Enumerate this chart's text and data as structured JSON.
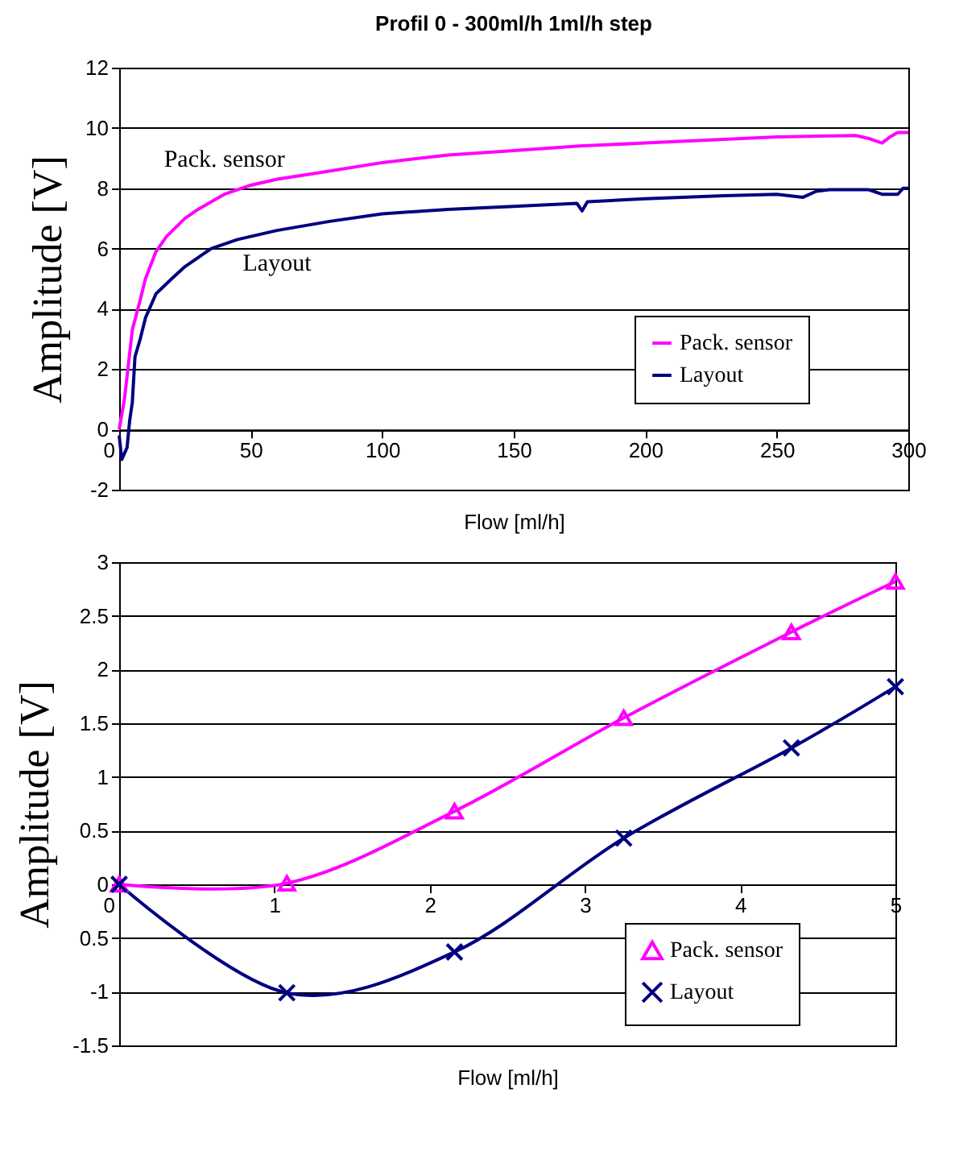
{
  "chart_data": [
    {
      "type": "line",
      "title": "Profil 0 - 300ml/h 1ml/h step",
      "xlabel": "Flow [ml/h]",
      "ylabel": "Amplitude [V]",
      "xlim": [
        0,
        300
      ],
      "xticks": [
        0,
        50,
        100,
        150,
        200,
        250,
        300
      ],
      "ylim": [
        -2,
        12
      ],
      "yticks": [
        -2,
        0,
        2,
        4,
        6,
        8,
        10,
        12
      ],
      "grid": "y",
      "legend": "bottom right",
      "marker": "none",
      "annotations": [
        "Pack. sensor",
        "Layout"
      ],
      "series": [
        {
          "name": "Pack. sensor",
          "color": "#ff00ff",
          "x": [
            0,
            2,
            5,
            8,
            10,
            14,
            18,
            25,
            30,
            40,
            50,
            60,
            75,
            100,
            125,
            150,
            175,
            200,
            225,
            250,
            280,
            285,
            290,
            293,
            296,
            300
          ],
          "values": [
            0,
            1.0,
            3.3,
            4.3,
            5.0,
            5.9,
            6.4,
            7.0,
            7.3,
            7.8,
            8.1,
            8.3,
            8.5,
            8.85,
            9.1,
            9.25,
            9.4,
            9.5,
            9.6,
            9.7,
            9.75,
            9.65,
            9.5,
            9.7,
            9.85,
            9.85
          ]
        },
        {
          "name": "Layout",
          "color": "#000080",
          "x": [
            0,
            1,
            3,
            4,
            5,
            6,
            8,
            10,
            14,
            20,
            25,
            30,
            35,
            45,
            60,
            80,
            100,
            125,
            150,
            174,
            176,
            178,
            200,
            230,
            250,
            260,
            265,
            270,
            285,
            290,
            296,
            298,
            300
          ],
          "values": [
            -0.2,
            -1.0,
            -0.6,
            0.3,
            0.9,
            2.4,
            3.0,
            3.7,
            4.5,
            5.0,
            5.4,
            5.7,
            6.0,
            6.3,
            6.6,
            6.9,
            7.15,
            7.3,
            7.4,
            7.5,
            7.25,
            7.55,
            7.65,
            7.75,
            7.8,
            7.7,
            7.9,
            7.95,
            7.95,
            7.8,
            7.8,
            8.0,
            8.0
          ]
        }
      ]
    },
    {
      "type": "line",
      "xlabel": "Flow [ml/h]",
      "ylabel": "Amplitude [V]",
      "xlim": [
        0,
        5
      ],
      "xticks": [
        0,
        1,
        2,
        3,
        4,
        5
      ],
      "ylim": [
        -1.5,
        3
      ],
      "yticks": [
        -1.5,
        -1,
        {
          "value": -0.5,
          "label": "0.5"
        },
        0,
        0.5,
        1,
        1.5,
        2,
        2.5,
        3
      ],
      "grid": "y",
      "legend": "bottom right",
      "series": [
        {
          "name": "Pack. sensor",
          "color": "#ff00ff",
          "marker": "triangle",
          "x": [
            0,
            1.08,
            2.16,
            3.25,
            4.33,
            5
          ],
          "values": [
            0,
            0.01,
            0.68,
            1.55,
            2.35,
            2.82
          ]
        },
        {
          "name": "Layout",
          "color": "#000080",
          "marker": "cross",
          "x": [
            0,
            1.08,
            2.16,
            3.25,
            4.33,
            5
          ],
          "values": [
            0,
            -1.01,
            -0.63,
            0.43,
            1.27,
            1.84
          ]
        }
      ]
    }
  ]
}
